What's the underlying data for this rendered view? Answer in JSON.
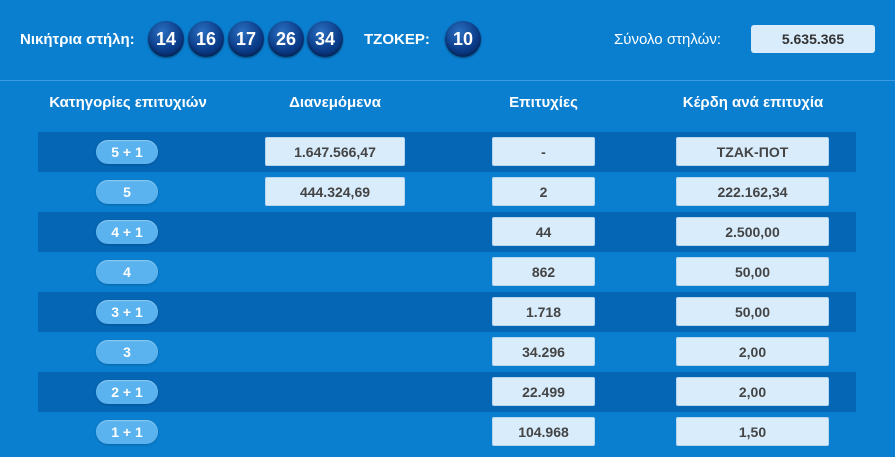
{
  "header": {
    "winning_label": "Νικήτρια στήλη:",
    "numbers": [
      "14",
      "16",
      "17",
      "26",
      "34"
    ],
    "joker_label": "ΤΖΟΚΕΡ:",
    "joker": "10",
    "total_label": "Σύνολο στηλών:",
    "total_value": "5.635.365"
  },
  "columns": [
    "Κατηγορίες επιτυχιών",
    "Διανεμόμενα",
    "Επιτυχίες",
    "Κέρδη ανά επιτυχία"
  ],
  "rows": [
    {
      "category": "5 + 1",
      "distributed": "1.647.566,47",
      "winners": "-",
      "prize": "ΤΖΑΚ-ΠΟΤ"
    },
    {
      "category": "5",
      "distributed": "444.324,69",
      "winners": "2",
      "prize": "222.162,34"
    },
    {
      "category": "4 + 1",
      "distributed": "",
      "winners": "44",
      "prize": "2.500,00"
    },
    {
      "category": "4",
      "distributed": "",
      "winners": "862",
      "prize": "50,00"
    },
    {
      "category": "3 + 1",
      "distributed": "",
      "winners": "1.718",
      "prize": "50,00"
    },
    {
      "category": "3",
      "distributed": "",
      "winners": "34.296",
      "prize": "2,00"
    },
    {
      "category": "2 + 1",
      "distributed": "",
      "winners": "22.499",
      "prize": "2,00"
    },
    {
      "category": "1 + 1",
      "distributed": "",
      "winners": "104.968",
      "prize": "1,50"
    }
  ],
  "colors": {
    "background": "#0a7fd0",
    "row_stripe": "#0566b5",
    "ball": "#0b3d8a",
    "pill": "#5ab2ee",
    "value_box": "#d8ecfb"
  }
}
